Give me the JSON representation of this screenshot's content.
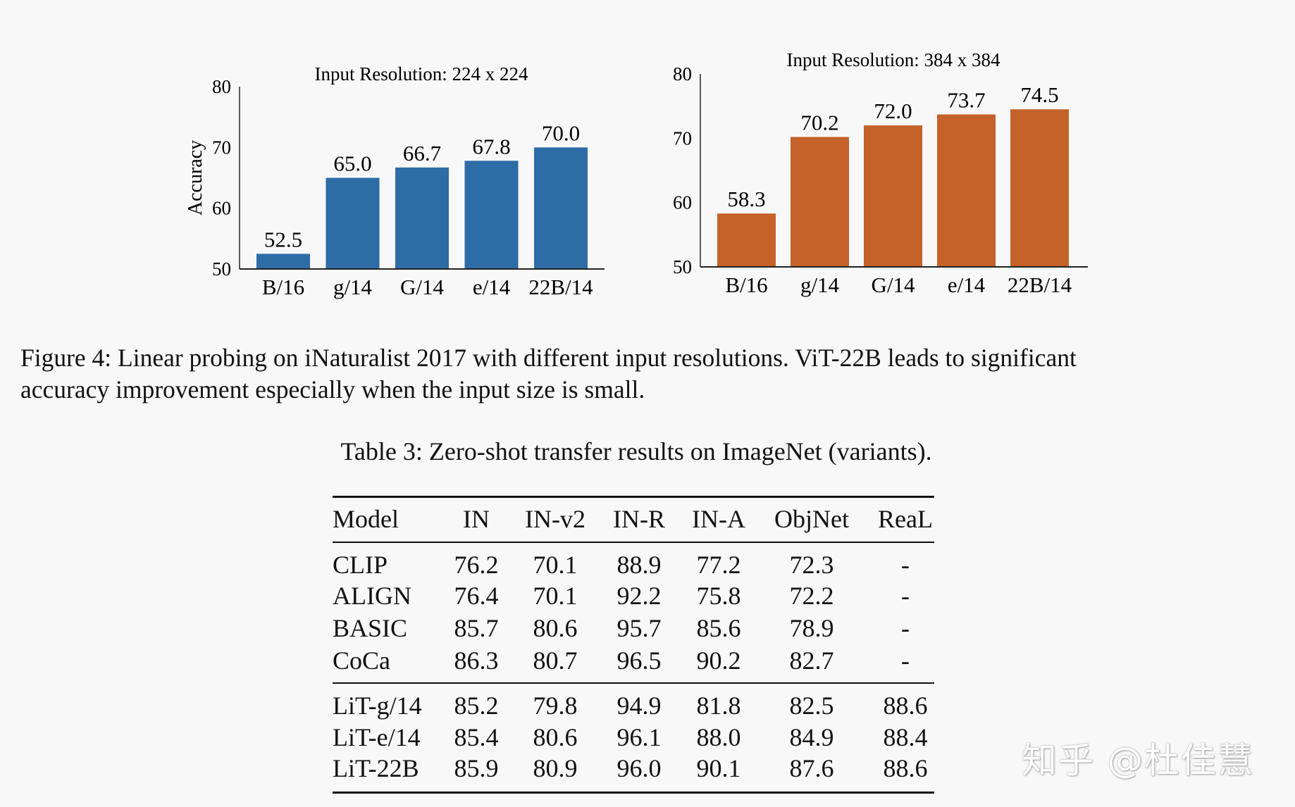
{
  "chart_data": [
    {
      "type": "bar",
      "title": "Input Resolution: 224 x 224",
      "ylabel": "Accuracy",
      "xlabel": "",
      "categories": [
        "B/16",
        "g/14",
        "G/14",
        "e/14",
        "22B/14"
      ],
      "values": [
        52.5,
        65.0,
        66.7,
        67.8,
        70.0
      ],
      "data_labels": [
        "52.5",
        "65.0",
        "66.7",
        "67.8",
        "70.0"
      ],
      "ylim": [
        50,
        80
      ],
      "yticks": [
        "50",
        "60",
        "70",
        "80"
      ],
      "color": "#2e6ca6",
      "grid": false
    },
    {
      "type": "bar",
      "title": "Input Resolution: 384 x 384",
      "ylabel": "",
      "xlabel": "",
      "categories": [
        "B/16",
        "g/14",
        "G/14",
        "e/14",
        "22B/14"
      ],
      "values": [
        58.3,
        70.2,
        72.0,
        73.7,
        74.5
      ],
      "data_labels": [
        "58.3",
        "70.2",
        "72.0",
        "73.7",
        "74.5"
      ],
      "ylim": [
        50,
        80
      ],
      "yticks": [
        "50",
        "60",
        "70",
        "80"
      ],
      "color": "#c4622a",
      "grid": false
    }
  ],
  "caption": {
    "line1": "Figure 4: Linear probing on iNaturalist 2017 with different input resolutions. ViT-22B leads to significant",
    "line2": "accuracy improvement especially when the input size is small."
  },
  "table": {
    "title": "Table 3: Zero-shot transfer results on ImageNet (variants).",
    "headers": [
      "Model",
      "IN",
      "IN-v2",
      "IN-R",
      "IN-A",
      "ObjNet",
      "ReaL"
    ],
    "rows": [
      [
        "CLIP",
        "76.2",
        "70.1",
        "88.9",
        "77.2",
        "72.3",
        "-"
      ],
      [
        "ALIGN",
        "76.4",
        "70.1",
        "92.2",
        "75.8",
        "72.2",
        "-"
      ],
      [
        "BASIC",
        "85.7",
        "80.6",
        "95.7",
        "85.6",
        "78.9",
        "-"
      ],
      [
        "CoCa",
        "86.3",
        "80.7",
        "96.5",
        "90.2",
        "82.7",
        "-"
      ],
      [
        "LiT-g/14",
        "85.2",
        "79.8",
        "94.9",
        "81.8",
        "82.5",
        "88.6"
      ],
      [
        "LiT-e/14",
        "85.4",
        "80.6",
        "96.1",
        "88.0",
        "84.9",
        "88.4"
      ],
      [
        "LiT-22B",
        "85.9",
        "80.9",
        "96.0",
        "90.1",
        "87.6",
        "88.6"
      ]
    ]
  },
  "watermark": "知乎 @杜佳慧"
}
